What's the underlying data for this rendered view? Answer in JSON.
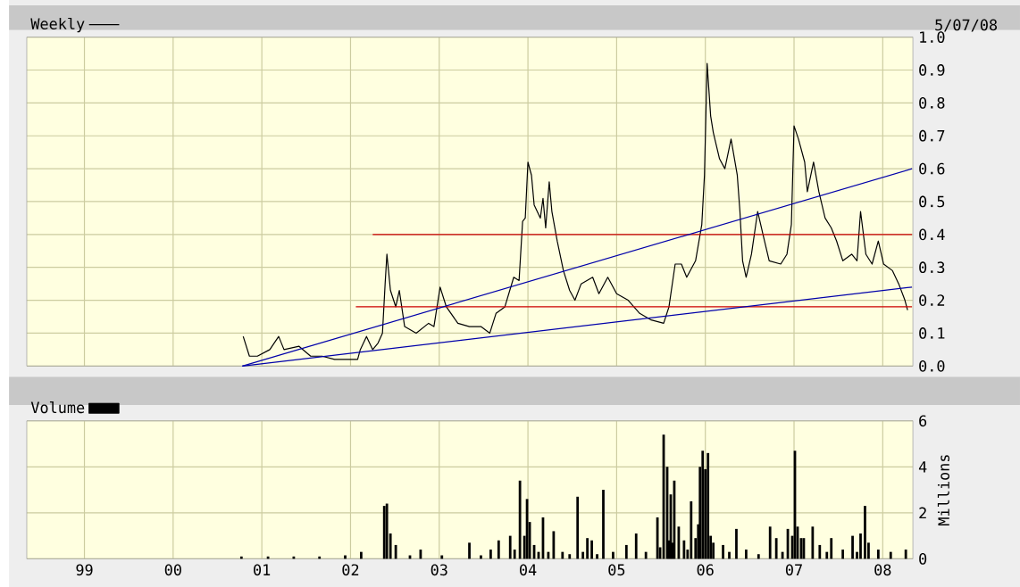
{
  "chart_data": [
    {
      "type": "line",
      "title": null,
      "annotations": [
        "5/07/08"
      ],
      "xlim": [
        1998.35,
        2008.34
      ],
      "ylim": [
        0,
        1.0
      ],
      "xticks": [
        {
          "value": 1999,
          "label": null
        },
        {
          "value": 2000,
          "label": null
        },
        {
          "value": 2001,
          "label": null
        },
        {
          "value": 2002,
          "label": null
        },
        {
          "value": 2003,
          "label": null
        },
        {
          "value": 2004,
          "label": null
        },
        {
          "value": 2005,
          "label": null
        },
        {
          "value": 2006,
          "label": null
        },
        {
          "value": 2007,
          "label": null
        },
        {
          "value": 2008,
          "label": null
        }
      ],
      "yticks": [
        {
          "value": 0,
          "label": "0.0"
        },
        0.1,
        0.2,
        0.3,
        0.4,
        0.5,
        0.6,
        0.7,
        0.8,
        0.9,
        {
          "value": 1.0,
          "label": "1.0"
        }
      ],
      "tick_labels": "y",
      "grid": true,
      "legend": "top left",
      "series": [
        {
          "name": "Weekly",
          "color": "#000000",
          "x": [
            2000.79,
            2000.86,
            2000.95,
            2001.09,
            2001.19,
            2001.25,
            2001.42,
            2001.55,
            2001.68,
            2001.82,
            2001.98,
            2002.08,
            2002.11,
            2002.18,
            2002.25,
            2002.31,
            2002.36,
            2002.39,
            2002.41,
            2002.45,
            2002.51,
            2002.55,
            2002.61,
            2002.74,
            2002.88,
            2002.94,
            2003.01,
            2003.08,
            2003.21,
            2003.34,
            2003.47,
            2003.57,
            2003.64,
            2003.74,
            2003.84,
            2003.9,
            2003.94,
            2003.97,
            2004.0,
            2004.04,
            2004.07,
            2004.14,
            2004.17,
            2004.2,
            2004.24,
            2004.27,
            2004.33,
            2004.4,
            2004.47,
            2004.53,
            2004.6,
            2004.73,
            2004.8,
            2004.9,
            2005.0,
            2005.13,
            2005.26,
            2005.39,
            2005.53,
            2005.59,
            2005.66,
            2005.73,
            2005.79,
            2005.89,
            2005.96,
            2005.99,
            2006.02,
            2006.06,
            2006.09,
            2006.16,
            2006.22,
            2006.29,
            2006.36,
            2006.39,
            2006.42,
            2006.46,
            2006.52,
            2006.59,
            2006.65,
            2006.72,
            2006.85,
            2006.92,
            2006.97,
            2007.0,
            2007.05,
            2007.12,
            2007.15,
            2007.22,
            2007.28,
            2007.35,
            2007.42,
            2007.48,
            2007.55,
            2007.65,
            2007.71,
            2007.75,
            2007.81,
            2007.88,
            2007.95,
            2008.01,
            2008.11,
            2008.18,
            2008.25,
            2008.28
          ],
          "values": [
            0.09,
            0.03,
            0.03,
            0.05,
            0.09,
            0.05,
            0.06,
            0.03,
            0.03,
            0.02,
            0.02,
            0.02,
            0.05,
            0.09,
            0.05,
            0.07,
            0.1,
            0.25,
            0.34,
            0.23,
            0.18,
            0.23,
            0.12,
            0.1,
            0.13,
            0.12,
            0.24,
            0.18,
            0.13,
            0.12,
            0.12,
            0.1,
            0.16,
            0.18,
            0.27,
            0.26,
            0.44,
            0.45,
            0.62,
            0.58,
            0.49,
            0.45,
            0.51,
            0.42,
            0.56,
            0.47,
            0.38,
            0.29,
            0.23,
            0.2,
            0.25,
            0.27,
            0.22,
            0.27,
            0.22,
            0.2,
            0.16,
            0.14,
            0.13,
            0.18,
            0.31,
            0.31,
            0.27,
            0.32,
            0.43,
            0.58,
            0.92,
            0.76,
            0.71,
            0.63,
            0.6,
            0.69,
            0.58,
            0.47,
            0.32,
            0.27,
            0.34,
            0.47,
            0.4,
            0.32,
            0.31,
            0.34,
            0.43,
            0.73,
            0.69,
            0.62,
            0.53,
            0.62,
            0.53,
            0.45,
            0.42,
            0.38,
            0.32,
            0.34,
            0.32,
            0.47,
            0.34,
            0.31,
            0.38,
            0.31,
            0.29,
            0.25,
            0.2,
            0.17
          ]
        },
        {
          "color": "#cc0000",
          "x": [
            2002.25,
            2008.33
          ],
          "values": [
            0.4,
            0.4
          ]
        },
        {
          "color": "#cc0000",
          "x": [
            2002.06,
            2008.33
          ],
          "values": [
            0.18,
            0.18
          ]
        },
        {
          "color": "#0000aa",
          "x": [
            2000.78,
            2008.33
          ],
          "values": [
            0.0,
            0.6
          ]
        },
        {
          "color": "#0000aa",
          "x": [
            2000.78,
            2008.33
          ],
          "values": [
            0.0,
            0.24
          ]
        }
      ]
    },
    {
      "type": "bar",
      "ylabel": "Millions",
      "xlim": [
        1998.35,
        2008.34
      ],
      "ylim": [
        0,
        6
      ],
      "xticks": [
        {
          "value": 1999,
          "label": "99"
        },
        {
          "value": 2000,
          "label": "00"
        },
        {
          "value": 2001,
          "label": "01"
        },
        {
          "value": 2002,
          "label": "02"
        },
        {
          "value": 2003,
          "label": "03"
        },
        {
          "value": 2004,
          "label": "04"
        },
        {
          "value": 2005,
          "label": "05"
        },
        {
          "value": 2006,
          "label": "06"
        },
        {
          "value": 2007,
          "label": "07"
        },
        {
          "value": 2008,
          "label": "08"
        }
      ],
      "yticks": [
        0,
        2,
        4,
        6
      ],
      "grid": true,
      "legend": "top left",
      "series": [
        {
          "name": "Volume",
          "color": "#000000",
          "x": [
            2000.77,
            2001.07,
            2001.36,
            2001.65,
            2001.94,
            2002.12,
            2002.38,
            2002.41,
            2002.45,
            2002.51,
            2002.67,
            2002.79,
            2003.03,
            2003.34,
            2003.47,
            2003.58,
            2003.67,
            2003.8,
            2003.85,
            2003.91,
            2003.96,
            2003.99,
            2004.02,
            2004.07,
            2004.12,
            2004.17,
            2004.23,
            2004.29,
            2004.39,
            2004.47,
            2004.56,
            2004.62,
            2004.67,
            2004.72,
            2004.78,
            2004.85,
            2004.96,
            2005.11,
            2005.22,
            2005.33,
            2005.46,
            2005.49,
            2005.53,
            2005.57,
            2005.59,
            2005.61,
            2005.63,
            2005.65,
            2005.7,
            2005.76,
            2005.8,
            2005.84,
            2005.89,
            2005.92,
            2005.94,
            2005.97,
            2006.0,
            2006.03,
            2006.06,
            2006.09,
            2006.2,
            2006.27,
            2006.35,
            2006.46,
            2006.6,
            2006.73,
            2006.8,
            2006.87,
            2006.93,
            2006.98,
            2007.01,
            2007.04,
            2007.08,
            2007.11,
            2007.21,
            2007.29,
            2007.37,
            2007.42,
            2007.55,
            2007.66,
            2007.71,
            2007.75,
            2007.8,
            2007.84,
            2007.95,
            2008.09,
            2008.26
          ],
          "values": [
            0.1,
            0.1,
            0.1,
            0.1,
            0.15,
            0.3,
            2.3,
            2.4,
            1.1,
            0.6,
            0.15,
            0.4,
            0.15,
            0.7,
            0.15,
            0.4,
            0.8,
            1.0,
            0.4,
            3.4,
            1.0,
            2.6,
            1.6,
            0.6,
            0.3,
            1.8,
            0.3,
            1.2,
            0.3,
            0.2,
            2.7,
            0.3,
            0.9,
            0.8,
            0.2,
            3.0,
            0.3,
            0.6,
            1.1,
            0.3,
            1.8,
            0.5,
            5.4,
            4.0,
            0.8,
            2.8,
            0.7,
            3.4,
            1.4,
            0.8,
            0.4,
            2.5,
            0.9,
            1.5,
            4.0,
            4.7,
            3.9,
            4.6,
            1.0,
            0.7,
            0.6,
            0.3,
            1.3,
            0.4,
            0.2,
            1.4,
            0.9,
            0.3,
            1.3,
            1.0,
            4.7,
            1.4,
            0.9,
            0.9,
            1.4,
            0.6,
            0.3,
            0.9,
            0.4,
            1.0,
            0.3,
            1.1,
            2.3,
            0.7,
            0.4,
            0.3,
            0.4
          ]
        }
      ]
    }
  ]
}
